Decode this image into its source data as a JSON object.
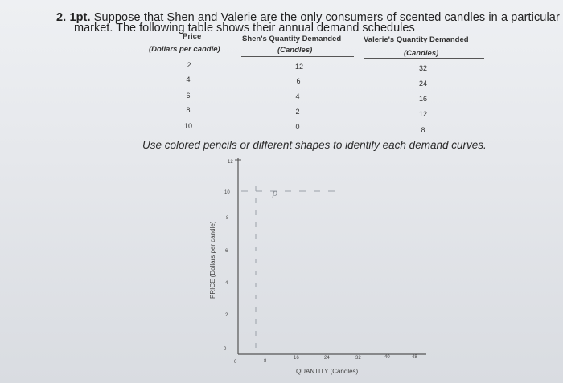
{
  "question": {
    "number": "2.",
    "points": "1pt.",
    "line1_rest": "Suppose that Shen and Valerie are the only consumers of scented candles in a particular",
    "line2": "market. The following table shows their annual demand schedules"
  },
  "table": {
    "price_header": "Price",
    "price_subheader": "(Dollars per candle)",
    "shen_header": "Shen's Quantity Demanded",
    "shen_subheader": "(Candles)",
    "valerie_header": "Valerie's Quantity Demanded",
    "valerie_subheader": "(Candles)",
    "rows": [
      {
        "price": "2",
        "shen": "12",
        "valerie": "32"
      },
      {
        "price": "4",
        "shen": "6",
        "valerie": "24"
      },
      {
        "price": "6",
        "shen": "4",
        "valerie": "16"
      },
      {
        "price": "8",
        "shen": "2",
        "valerie": "12"
      },
      {
        "price": "10",
        "shen": "0",
        "valerie": "8"
      }
    ]
  },
  "instruction": "Use colored pencils or different shapes to identify each demand curves.",
  "graph": {
    "y_axis_label": "PRICE (Dollars per candle)",
    "x_axis_label": "QUANTITY (Candles)",
    "y_ticks": [
      "12",
      "10",
      "8",
      "6",
      "4",
      "2",
      "0"
    ],
    "x_ticks": [
      "0",
      "8",
      "16",
      "24",
      "32",
      "40",
      "48"
    ],
    "handwritten_mark": "p",
    "colors": {
      "axis": "#555555",
      "dashed": "#9aa0a8",
      "text": "#333333"
    }
  }
}
